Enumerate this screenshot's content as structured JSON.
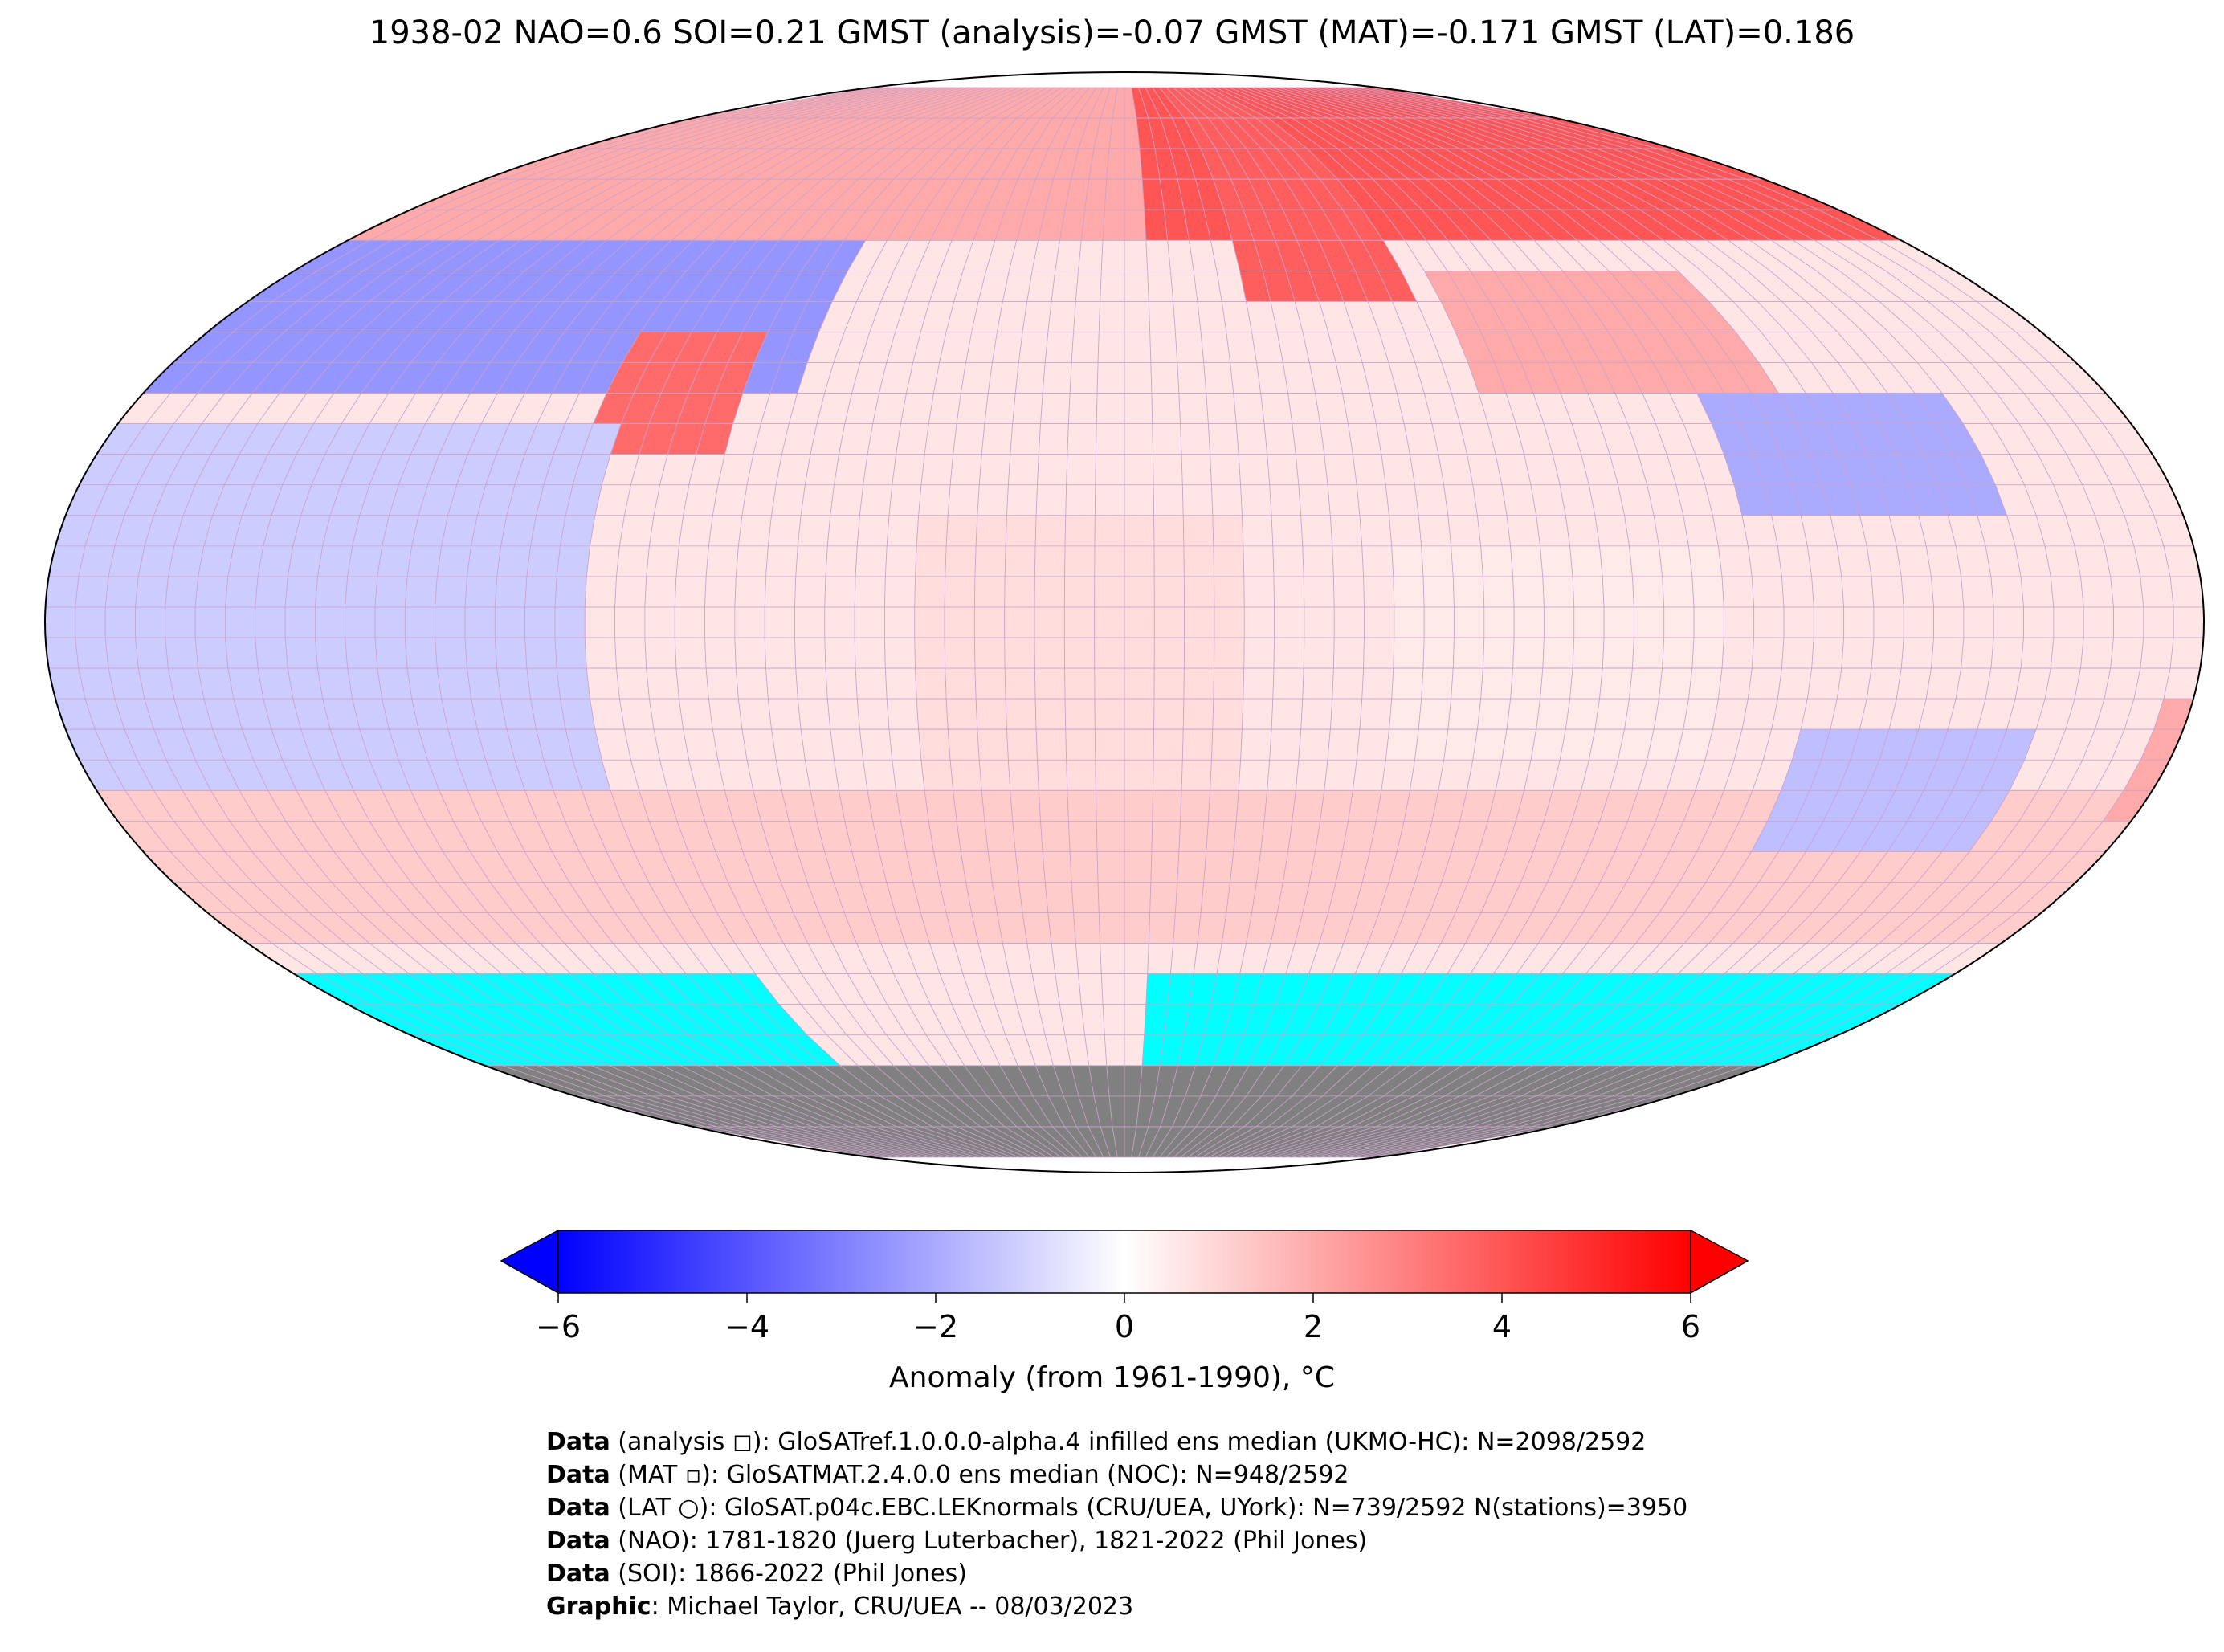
{
  "title": "1938-02 NAO=0.6 SOI=0.21 GMST (analysis)=-0.07 GMST (MAT)=-0.171 GMST (LAT)=0.186",
  "colorbar": {
    "label": "Anomaly (from 1961-1990), °C",
    "ticks": [
      "−6",
      "−4",
      "−2",
      "0",
      "2",
      "4",
      "6"
    ],
    "tick_values": [
      -6,
      -4,
      -2,
      0,
      2,
      4,
      6
    ],
    "range": [
      -6,
      6
    ],
    "colors": {
      "min": "#0000ff",
      "mid": "#ffffff",
      "max": "#ff0000"
    }
  },
  "map": {
    "projection": "robinson",
    "no_data_color": "#00ffff",
    "land_mask_color": "#808080",
    "grid_color": "#c080c0"
  },
  "credits": [
    {
      "bold": "Data",
      "text": " (analysis ◻): GloSATref.1.0.0.0-alpha.4 infilled ens median (UKMO-HC): N=2098/2592"
    },
    {
      "bold": "Data",
      "text": " (MAT ▫): GloSATMAT.2.4.0.0 ens median (NOC): N=948/2592"
    },
    {
      "bold": "Data",
      "text": " (LAT ○): GloSAT.p04c.EBC.LEKnormals (CRU/UEA, UYork): N=739/2592 N(stations)=3950"
    },
    {
      "bold": "Data",
      "text": " (NAO): 1781-1820 (Juerg Luterbacher), 1821-2022 (Phil Jones)"
    },
    {
      "bold": "Data",
      "text": " (SOI): 1866-2022 (Phil Jones)"
    },
    {
      "bold": "Graphic",
      "text": ": Michael Taylor, CRU/UEA -- 08/03/2023"
    }
  ]
}
